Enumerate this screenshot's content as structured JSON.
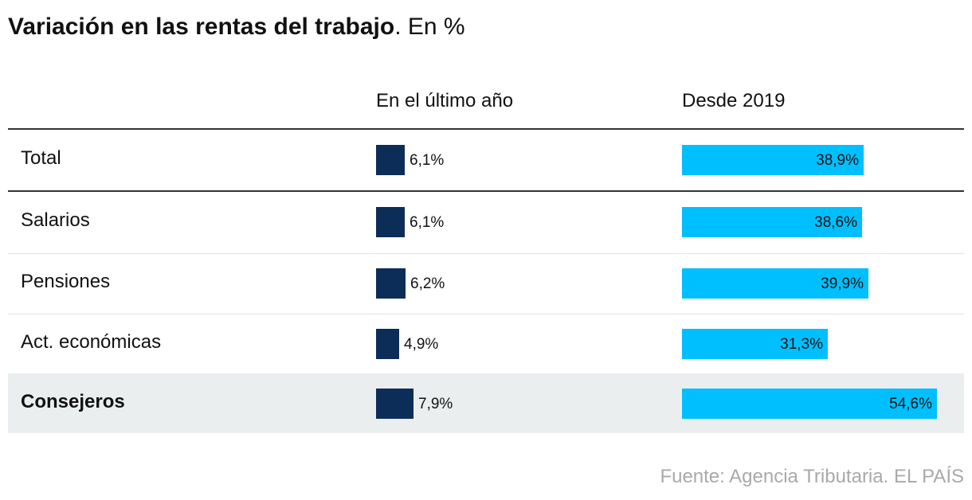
{
  "title": {
    "bold": "Variación en las rentas del trabajo",
    "light": ". En %"
  },
  "chart_data": {
    "type": "table",
    "columns": [
      "En el último año",
      "Desde 2019"
    ],
    "rows": [
      {
        "label": "Total",
        "values": [
          6.1,
          38.9
        ],
        "labels": [
          "6,1%",
          "38,9%"
        ],
        "highlight": false
      },
      {
        "label": "Salarios",
        "values": [
          6.1,
          38.6
        ],
        "labels": [
          "6,1%",
          "38,6%"
        ],
        "highlight": false
      },
      {
        "label": "Pensiones",
        "values": [
          6.2,
          39.9
        ],
        "labels": [
          "6,2%",
          "39,9%"
        ],
        "highlight": false
      },
      {
        "label": "Act. económicas",
        "values": [
          4.9,
          31.3
        ],
        "labels": [
          "4,9%",
          "31,3%"
        ],
        "highlight": false
      },
      {
        "label": "Consejeros",
        "values": [
          7.9,
          54.6
        ],
        "labels": [
          "7,9%",
          "54,6%"
        ],
        "highlight": true
      }
    ],
    "colors": {
      "bar_last_year": "#0c2d57",
      "bar_since_2019": "#00bfff",
      "highlight_row": "#ebeeef"
    }
  },
  "source": "Fuente: Agencia Tributaria. EL PAÍS"
}
